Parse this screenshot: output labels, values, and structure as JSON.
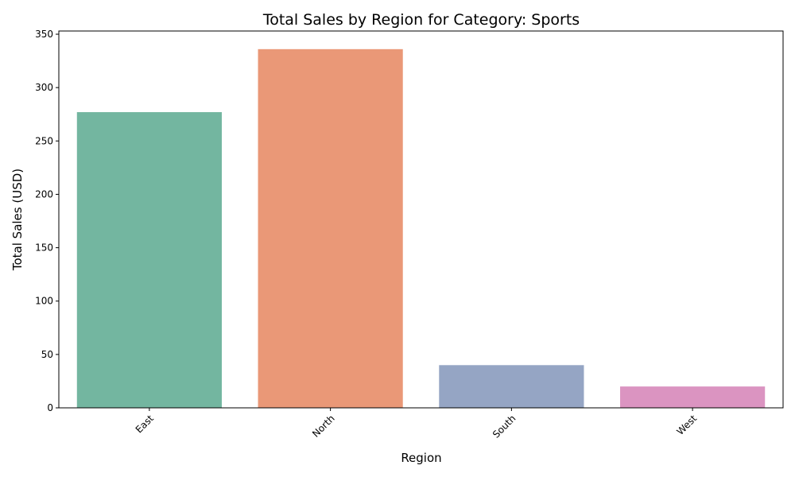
{
  "chart_data": {
    "type": "bar",
    "title": "Total Sales by Region for Category: Sports",
    "xlabel": "Region",
    "ylabel": "Total Sales (USD)",
    "categories": [
      "East",
      "North",
      "South",
      "West"
    ],
    "values": [
      277,
      336,
      40,
      20
    ],
    "colors": [
      "#73b6a0",
      "#ea9877",
      "#95a5c4",
      "#db94c1"
    ],
    "ylim": [
      0,
      353
    ],
    "yticks": [
      0,
      50,
      100,
      150,
      200,
      250,
      300,
      350
    ],
    "ytick_labels": [
      "0",
      "50",
      "100",
      "150",
      "200",
      "250",
      "300",
      "350"
    ],
    "grid": false,
    "xtick_rotation": 45
  }
}
